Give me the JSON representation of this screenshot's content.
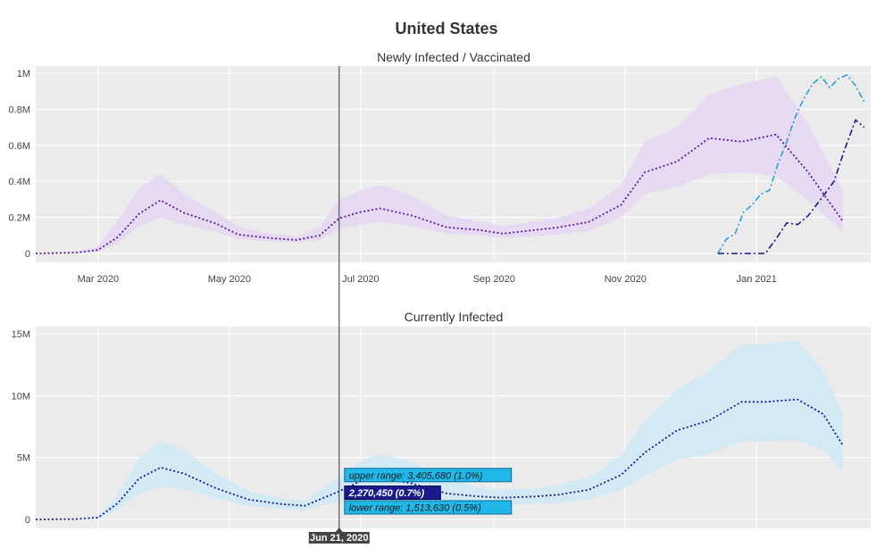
{
  "chart_data": {
    "title": "United States",
    "colors": {
      "infected_line": "#5b1a94",
      "infected_band": "#e6d9f2",
      "current_line": "#1a1a8c",
      "current_band": "#d3eaf5",
      "vacc_light": "#2a9fd6",
      "vacc_dark": "#1a1a8c",
      "tooltip_upper": "#1fb8e8",
      "tooltip_mid": "#1a1a8c",
      "tooltip_date": "#444444",
      "plot_bg": "#ebebeb"
    },
    "x_tick_labels": [
      "Mar 2020",
      "May 2020",
      "Jul 2020",
      "Sep 2020",
      "Nov 2020",
      "Jan 2021"
    ],
    "x_tick_dates": [
      "2020-03-01",
      "2020-05-01",
      "2020-07-01",
      "2020-09-01",
      "2020-11-01",
      "2021-01-01"
    ],
    "x_range": [
      "2020-02-01",
      "2021-02-23"
    ],
    "cursor_date": "2020-06-21",
    "panels": [
      {
        "subtitle": "Newly Infected / Vaccinated",
        "type": "line",
        "ylim": [
          0,
          1000000
        ],
        "y_ticks": [
          0,
          200000,
          400000,
          600000,
          800000,
          1000000
        ],
        "y_tick_labels": [
          "0",
          "0.2M",
          "0.4M",
          "0.6M",
          "0.8M",
          "1M"
        ],
        "series": [
          {
            "role": "estimate",
            "x": [
              "2020-02-01",
              "2020-02-20",
              "2020-03-01",
              "2020-03-10",
              "2020-03-20",
              "2020-03-30",
              "2020-04-10",
              "2020-04-25",
              "2020-05-05",
              "2020-05-20",
              "2020-06-01",
              "2020-06-12",
              "2020-06-21",
              "2020-07-01",
              "2020-07-10",
              "2020-07-25",
              "2020-08-10",
              "2020-08-25",
              "2020-09-05",
              "2020-09-20",
              "2020-10-01",
              "2020-10-15",
              "2020-10-30",
              "2020-11-10",
              "2020-11-25",
              "2020-12-10",
              "2020-12-25",
              "2021-01-10",
              "2021-01-25",
              "2021-02-10"
            ],
            "y": [
              0,
              5000,
              20000,
              90000,
              220000,
              295000,
              225000,
              165000,
              105000,
              85000,
              75000,
              100000,
              195000,
              230000,
              250000,
              210000,
              145000,
              130000,
              110000,
              130000,
              145000,
              175000,
              270000,
              450000,
              510000,
              640000,
              620000,
              660000,
              450000,
              180000
            ]
          },
          {
            "role": "upper",
            "x": [
              "2020-02-01",
              "2020-02-20",
              "2020-03-01",
              "2020-03-10",
              "2020-03-20",
              "2020-03-30",
              "2020-04-10",
              "2020-04-25",
              "2020-05-05",
              "2020-05-20",
              "2020-06-01",
              "2020-06-12",
              "2020-06-21",
              "2020-07-01",
              "2020-07-10",
              "2020-07-25",
              "2020-08-10",
              "2020-08-25",
              "2020-09-05",
              "2020-09-20",
              "2020-10-01",
              "2020-10-15",
              "2020-10-30",
              "2020-11-10",
              "2020-11-25",
              "2020-12-10",
              "2020-12-25",
              "2021-01-10",
              "2021-01-25",
              "2021-02-10"
            ],
            "y": [
              0,
              8000,
              40000,
              180000,
              360000,
              440000,
              330000,
              230000,
              150000,
              110000,
              95000,
              150000,
              300000,
              350000,
              380000,
              320000,
              210000,
              180000,
              150000,
              180000,
              200000,
              250000,
              380000,
              620000,
              700000,
              880000,
              940000,
              980000,
              720000,
              350000
            ]
          },
          {
            "role": "lower",
            "x": [
              "2020-02-01",
              "2020-02-20",
              "2020-03-01",
              "2020-03-10",
              "2020-03-20",
              "2020-03-30",
              "2020-04-10",
              "2020-04-25",
              "2020-05-05",
              "2020-05-20",
              "2020-06-01",
              "2020-06-12",
              "2020-06-21",
              "2020-07-01",
              "2020-07-10",
              "2020-07-25",
              "2020-08-10",
              "2020-08-25",
              "2020-09-05",
              "2020-09-20",
              "2020-10-01",
              "2020-10-15",
              "2020-10-30",
              "2020-11-10",
              "2020-11-25",
              "2020-12-10",
              "2020-12-25",
              "2021-01-10",
              "2021-01-25",
              "2021-02-10"
            ],
            "y": [
              0,
              3000,
              10000,
              55000,
              150000,
              200000,
              160000,
              120000,
              80000,
              68000,
              62000,
              75000,
              135000,
              160000,
              175000,
              150000,
              110000,
              100000,
              85000,
              95000,
              105000,
              125000,
              200000,
              330000,
              370000,
              440000,
              450000,
              430000,
              290000,
              120000
            ]
          },
          {
            "role": "vaccinated-1",
            "x": [
              "2020-12-14",
              "2020-12-18",
              "2020-12-22",
              "2020-12-26",
              "2020-12-30",
              "2021-01-03",
              "2021-01-07",
              "2021-01-11",
              "2021-01-15",
              "2021-01-19",
              "2021-01-23",
              "2021-01-27",
              "2021-01-31",
              "2021-02-04",
              "2021-02-08",
              "2021-02-12",
              "2021-02-16",
              "2021-02-20"
            ],
            "y": [
              0,
              80000,
              110000,
              230000,
              270000,
              330000,
              350000,
              500000,
              620000,
              760000,
              860000,
              940000,
              980000,
              920000,
              970000,
              990000,
              930000,
              840000
            ]
          },
          {
            "role": "vaccinated-2",
            "x": [
              "2020-12-14",
              "2020-12-28",
              "2021-01-05",
              "2021-01-10",
              "2021-01-15",
              "2021-01-20",
              "2021-01-25",
              "2021-02-01",
              "2021-02-06",
              "2021-02-11",
              "2021-02-16",
              "2021-02-20"
            ],
            "y": [
              0,
              0,
              0,
              80000,
              170000,
              160000,
              210000,
              320000,
              400000,
              580000,
              740000,
              700000
            ]
          }
        ]
      },
      {
        "subtitle": "Currently Infected",
        "type": "line",
        "ylim": [
          0,
          15000000
        ],
        "y_ticks": [
          0,
          5000000,
          10000000,
          15000000
        ],
        "y_tick_labels": [
          "0",
          "5M",
          "10M",
          "15M"
        ],
        "series": [
          {
            "role": "estimate",
            "x": [
              "2020-02-01",
              "2020-02-20",
              "2020-03-01",
              "2020-03-10",
              "2020-03-20",
              "2020-03-30",
              "2020-04-10",
              "2020-04-25",
              "2020-05-10",
              "2020-05-25",
              "2020-06-05",
              "2020-06-21",
              "2020-07-01",
              "2020-07-10",
              "2020-07-25",
              "2020-08-10",
              "2020-08-25",
              "2020-09-05",
              "2020-09-20",
              "2020-10-01",
              "2020-10-15",
              "2020-10-30",
              "2020-11-10",
              "2020-11-25",
              "2020-12-10",
              "2020-12-25",
              "2021-01-05",
              "2021-01-20",
              "2021-02-01",
              "2021-02-10"
            ],
            "y": [
              0,
              30000,
              150000,
              1300000,
              3300000,
              4200000,
              3700000,
              2500000,
              1600000,
              1250000,
              1100000,
              2270450,
              3100000,
              3350000,
              2900000,
              2100000,
              1850000,
              1750000,
              1850000,
              2000000,
              2400000,
              3600000,
              5400000,
              7200000,
              8000000,
              9500000,
              9500000,
              9700000,
              8500000,
              6000000
            ]
          },
          {
            "role": "upper",
            "x": [
              "2020-02-01",
              "2020-02-20",
              "2020-03-01",
              "2020-03-10",
              "2020-03-20",
              "2020-03-30",
              "2020-04-10",
              "2020-04-25",
              "2020-05-10",
              "2020-05-25",
              "2020-06-05",
              "2020-06-21",
              "2020-07-01",
              "2020-07-10",
              "2020-07-25",
              "2020-08-10",
              "2020-08-25",
              "2020-09-05",
              "2020-09-20",
              "2020-10-01",
              "2020-10-15",
              "2020-10-30",
              "2020-11-10",
              "2020-11-25",
              "2020-12-10",
              "2020-12-25",
              "2021-01-05",
              "2021-01-20",
              "2021-02-01",
              "2021-02-10"
            ],
            "y": [
              0,
              50000,
              250000,
              2000000,
              5000000,
              6300000,
              5600000,
              3700000,
              2300000,
              1700000,
              1500000,
              3405680,
              4700000,
              5300000,
              4600000,
              3200000,
              2600000,
              2400000,
              2500000,
              2800000,
              3400000,
              5200000,
              8000000,
              10500000,
              12000000,
              14200000,
              14200000,
              14400000,
              12000000,
              8600000
            ]
          },
          {
            "role": "lower",
            "x": [
              "2020-02-01",
              "2020-02-20",
              "2020-03-01",
              "2020-03-10",
              "2020-03-20",
              "2020-03-30",
              "2020-04-10",
              "2020-04-25",
              "2020-05-10",
              "2020-05-25",
              "2020-06-05",
              "2020-06-21",
              "2020-07-01",
              "2020-07-10",
              "2020-07-25",
              "2020-08-10",
              "2020-08-25",
              "2020-09-05",
              "2020-09-20",
              "2020-10-01",
              "2020-10-15",
              "2020-10-30",
              "2020-11-10",
              "2020-11-25",
              "2020-12-10",
              "2020-12-25",
              "2021-01-05",
              "2021-01-20",
              "2021-02-01",
              "2021-02-10"
            ],
            "y": [
              0,
              20000,
              80000,
              800000,
              2000000,
              2700000,
              2400000,
              1700000,
              1100000,
              850000,
              750000,
              1513630,
              2100000,
              2200000,
              1900000,
              1400000,
              1250000,
              1200000,
              1250000,
              1350000,
              1600000,
              2400000,
              3500000,
              4800000,
              5300000,
              6300000,
              6300000,
              6400000,
              5600000,
              3800000
            ]
          }
        ]
      }
    ],
    "tooltip": {
      "date": "Jun 21, 2020",
      "upper": "upper range: 3,405,680 (1.0%)",
      "estimate": "2,270,450 (0.7%)",
      "lower": "lower range: 1,513,630 (0.5%)"
    }
  }
}
